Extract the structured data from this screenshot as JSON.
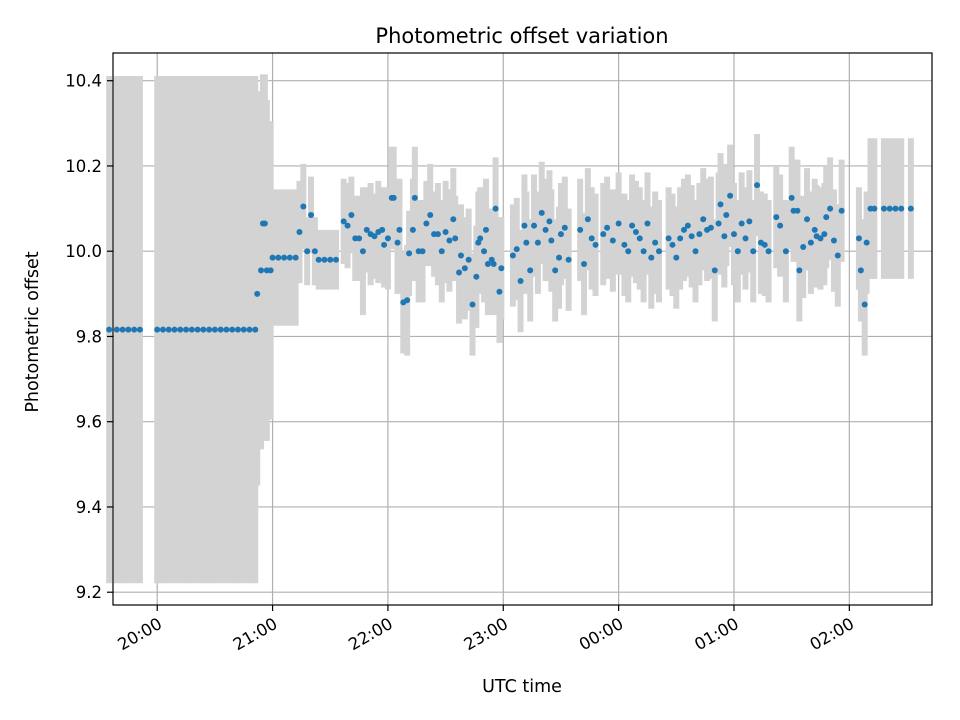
{
  "chart_data": {
    "type": "scatter",
    "title": "Photometric offset variation",
    "xlabel": "UTC time",
    "ylabel": "Photometric offset",
    "xlim": [
      "19:37",
      "02:43"
    ],
    "ylim": [
      9.17,
      10.465
    ],
    "xticks": [
      "20:00",
      "21:00",
      "22:00",
      "23:00",
      "00:00",
      "01:00",
      "02:00"
    ],
    "yticks": [
      "9.2",
      "9.4",
      "9.6",
      "9.8",
      "10.0",
      "10.2",
      "10.4"
    ],
    "grid": true,
    "colors": {
      "points": "#1f77b4",
      "errorbars": "#d3d3d3",
      "grid": "#b0b0b0"
    },
    "series": [
      {
        "points": [
          [
            "19:35",
            9.816,
            0.595
          ],
          [
            "19:39",
            9.816,
            0.595
          ],
          [
            "19:42",
            9.816,
            0.595
          ],
          [
            "19:45",
            9.816,
            0.595
          ],
          [
            "19:48",
            9.816,
            0.595
          ],
          [
            "19:51",
            9.816,
            0.595
          ],
          [
            "20:00",
            9.816,
            0.595
          ],
          [
            "20:03",
            9.816,
            0.595
          ],
          [
            "20:06",
            9.816,
            0.595
          ],
          [
            "20:09",
            9.816,
            0.595
          ],
          [
            "20:12",
            9.816,
            0.595
          ],
          [
            "20:15",
            9.816,
            0.595
          ],
          [
            "20:18",
            9.816,
            0.595
          ],
          [
            "20:21",
            9.816,
            0.595
          ],
          [
            "20:24",
            9.816,
            0.595
          ],
          [
            "20:27",
            9.816,
            0.595
          ],
          [
            "20:30",
            9.816,
            0.595
          ],
          [
            "20:33",
            9.816,
            0.595
          ],
          [
            "20:36",
            9.816,
            0.595
          ],
          [
            "20:39",
            9.816,
            0.595
          ],
          [
            "20:42",
            9.816,
            0.595
          ],
          [
            "20:45",
            9.816,
            0.595
          ],
          [
            "20:48",
            9.816,
            0.595
          ],
          [
            "20:51",
            9.816,
            0.595
          ],
          [
            "20:52",
            9.9,
            0.45
          ],
          [
            "20:54",
            9.955,
            0.42
          ],
          [
            "20:55",
            10.065,
            0.35
          ],
          [
            "20:56",
            10.065,
            0.35
          ],
          [
            "20:57",
            9.955,
            0.4
          ],
          [
            "20:59",
            9.955,
            0.35
          ],
          [
            "21:00",
            9.985,
            0.16
          ],
          [
            "21:03",
            9.985,
            0.16
          ],
          [
            "21:06",
            9.985,
            0.16
          ],
          [
            "21:09",
            9.985,
            0.16
          ],
          [
            "21:12",
            9.985,
            0.16
          ],
          [
            "21:14",
            10.045,
            0.12
          ],
          [
            "21:16",
            10.105,
            0.1
          ],
          [
            "21:18",
            10.0,
            0.08
          ],
          [
            "21:20",
            10.085,
            0.09
          ],
          [
            "21:22",
            10.0,
            0.08
          ],
          [
            "21:24",
            9.98,
            0.07
          ],
          [
            "21:27",
            9.98,
            0.07
          ],
          [
            "21:30",
            9.98,
            0.07
          ],
          [
            "21:33",
            9.98,
            0.07
          ],
          [
            "21:37",
            10.07,
            0.1
          ],
          [
            "21:39",
            10.06,
            0.1
          ],
          [
            "21:41",
            10.085,
            0.09
          ],
          [
            "21:43",
            10.03,
            0.1
          ],
          [
            "21:45",
            10.03,
            0.1
          ],
          [
            "21:47",
            10.0,
            0.15
          ],
          [
            "21:49",
            10.05,
            0.1
          ],
          [
            "21:51",
            10.04,
            0.12
          ],
          [
            "21:53",
            10.035,
            0.1
          ],
          [
            "21:55",
            10.045,
            0.12
          ],
          [
            "21:57",
            10.05,
            0.1
          ],
          [
            "21:58",
            10.015,
            0.1
          ],
          [
            "22:00",
            10.03,
            0.12
          ],
          [
            "22:02",
            10.125,
            0.12
          ],
          [
            "22:03",
            10.125,
            0.12
          ],
          [
            "22:05",
            10.02,
            0.12
          ],
          [
            "22:06",
            10.05,
            0.12
          ],
          [
            "22:08",
            9.88,
            0.12
          ],
          [
            "22:10",
            9.885,
            0.13
          ],
          [
            "22:11",
            9.995,
            0.1
          ],
          [
            "22:13",
            10.05,
            0.12
          ],
          [
            "22:14",
            10.125,
            0.12
          ],
          [
            "22:16",
            10.0,
            0.12
          ],
          [
            "22:18",
            10.0,
            0.12
          ],
          [
            "22:20",
            10.065,
            0.1
          ],
          [
            "22:22",
            10.085,
            0.12
          ],
          [
            "22:24",
            10.04,
            0.1
          ],
          [
            "22:26",
            10.04,
            0.12
          ],
          [
            "22:28",
            10.0,
            0.12
          ],
          [
            "22:30",
            10.045,
            0.12
          ],
          [
            "22:32",
            10.025,
            0.12
          ],
          [
            "22:34",
            10.075,
            0.12
          ],
          [
            "22:35",
            10.03,
            0.1
          ],
          [
            "22:37",
            9.95,
            0.12
          ],
          [
            "22:38",
            9.99,
            0.12
          ],
          [
            "22:40",
            9.96,
            0.12
          ],
          [
            "22:42",
            9.98,
            0.12
          ],
          [
            "22:44",
            9.875,
            0.12
          ],
          [
            "22:46",
            9.94,
            0.12
          ],
          [
            "22:47",
            10.02,
            0.12
          ],
          [
            "22:48",
            10.03,
            0.12
          ],
          [
            "22:50",
            10.0,
            0.12
          ],
          [
            "22:51",
            10.05,
            0.12
          ],
          [
            "22:52",
            9.97,
            0.12
          ],
          [
            "22:54",
            9.98,
            0.12
          ],
          [
            "22:55",
            9.97,
            0.12
          ],
          [
            "22:56",
            10.1,
            0.12
          ],
          [
            "22:58",
            9.905,
            0.12
          ],
          [
            "22:59",
            9.96,
            0.12
          ],
          [
            "23:05",
            9.99,
            0.12
          ],
          [
            "23:07",
            10.005,
            0.12
          ],
          [
            "23:09",
            9.93,
            0.12
          ],
          [
            "23:11",
            10.06,
            0.12
          ],
          [
            "23:12",
            10.02,
            0.12
          ],
          [
            "23:14",
            9.955,
            0.12
          ],
          [
            "23:16",
            10.06,
            0.12
          ],
          [
            "23:18",
            10.02,
            0.12
          ],
          [
            "23:20",
            10.09,
            0.12
          ],
          [
            "23:22",
            10.05,
            0.12
          ],
          [
            "23:24",
            10.07,
            0.12
          ],
          [
            "23:25",
            10.025,
            0.12
          ],
          [
            "23:27",
            9.955,
            0.12
          ],
          [
            "23:29",
            9.985,
            0.12
          ],
          [
            "23:30",
            10.04,
            0.12
          ],
          [
            "23:32",
            10.055,
            0.12
          ],
          [
            "23:34",
            9.98,
            0.12
          ],
          [
            "23:40",
            10.05,
            0.12
          ],
          [
            "23:42",
            9.97,
            0.12
          ],
          [
            "23:44",
            10.075,
            0.12
          ],
          [
            "23:46",
            10.03,
            0.12
          ],
          [
            "23:48",
            10.015,
            0.12
          ],
          [
            "23:52",
            10.04,
            0.12
          ],
          [
            "23:54",
            10.055,
            0.12
          ],
          [
            "23:57",
            10.025,
            0.12
          ],
          [
            "00:00",
            10.065,
            0.12
          ],
          [
            "00:03",
            10.015,
            0.12
          ],
          [
            "00:05",
            10.0,
            0.12
          ],
          [
            "00:07",
            10.06,
            0.12
          ],
          [
            "00:09",
            10.045,
            0.12
          ],
          [
            "00:11",
            10.03,
            0.12
          ],
          [
            "00:13",
            10.0,
            0.12
          ],
          [
            "00:15",
            10.065,
            0.12
          ],
          [
            "00:17",
            9.985,
            0.12
          ],
          [
            "00:19",
            10.02,
            0.12
          ],
          [
            "00:21",
            10.0,
            0.12
          ],
          [
            "00:26",
            10.03,
            0.12
          ],
          [
            "00:28",
            10.015,
            0.12
          ],
          [
            "00:30",
            9.985,
            0.12
          ],
          [
            "00:32",
            10.03,
            0.12
          ],
          [
            "00:34",
            10.05,
            0.12
          ],
          [
            "00:36",
            10.06,
            0.12
          ],
          [
            "00:38",
            10.035,
            0.12
          ],
          [
            "00:40",
            10.0,
            0.12
          ],
          [
            "00:42",
            10.04,
            0.12
          ],
          [
            "00:44",
            10.075,
            0.12
          ],
          [
            "00:46",
            10.05,
            0.12
          ],
          [
            "00:48",
            10.055,
            0.12
          ],
          [
            "00:50",
            9.955,
            0.12
          ],
          [
            "00:52",
            10.065,
            0.12
          ],
          [
            "00:53",
            10.11,
            0.12
          ],
          [
            "00:55",
            10.035,
            0.12
          ],
          [
            "00:56",
            10.085,
            0.12
          ],
          [
            "00:58",
            10.13,
            0.12
          ],
          [
            "01:00",
            10.04,
            0.12
          ],
          [
            "01:02",
            10.0,
            0.12
          ],
          [
            "01:04",
            10.065,
            0.12
          ],
          [
            "01:06",
            10.03,
            0.12
          ],
          [
            "01:08",
            10.07,
            0.12
          ],
          [
            "01:10",
            10.0,
            0.12
          ],
          [
            "01:12",
            10.155,
            0.12
          ],
          [
            "01:14",
            10.02,
            0.12
          ],
          [
            "01:16",
            10.015,
            0.12
          ],
          [
            "01:18",
            10.0,
            0.12
          ],
          [
            "01:22",
            10.08,
            0.12
          ],
          [
            "01:24",
            10.06,
            0.12
          ],
          [
            "01:27",
            10.0,
            0.12
          ],
          [
            "01:30",
            10.125,
            0.12
          ],
          [
            "01:31",
            10.095,
            0.12
          ],
          [
            "01:33",
            10.095,
            0.12
          ],
          [
            "01:34",
            9.955,
            0.12
          ],
          [
            "01:36",
            10.01,
            0.12
          ],
          [
            "01:38",
            10.075,
            0.12
          ],
          [
            "01:40",
            10.02,
            0.12
          ],
          [
            "01:42",
            10.05,
            0.12
          ],
          [
            "01:43",
            10.035,
            0.12
          ],
          [
            "01:45",
            10.03,
            0.12
          ],
          [
            "01:47",
            10.04,
            0.12
          ],
          [
            "01:48",
            10.08,
            0.12
          ],
          [
            "01:50",
            10.1,
            0.12
          ],
          [
            "01:52",
            10.025,
            0.12
          ],
          [
            "01:54",
            9.99,
            0.12
          ],
          [
            "01:56",
            10.095,
            0.12
          ],
          [
            "02:05",
            10.03,
            0.12
          ],
          [
            "02:06",
            9.955,
            0.12
          ],
          [
            "02:08",
            9.875,
            0.12
          ],
          [
            "02:09",
            10.02,
            0.12
          ],
          [
            "02:11",
            10.1,
            0.165
          ],
          [
            "02:13",
            10.1,
            0.165
          ],
          [
            "02:18",
            10.1,
            0.165
          ],
          [
            "02:21",
            10.1,
            0.165
          ],
          [
            "02:24",
            10.1,
            0.165
          ],
          [
            "02:27",
            10.1,
            0.165
          ],
          [
            "02:32",
            10.1,
            0.165
          ]
        ]
      }
    ]
  }
}
